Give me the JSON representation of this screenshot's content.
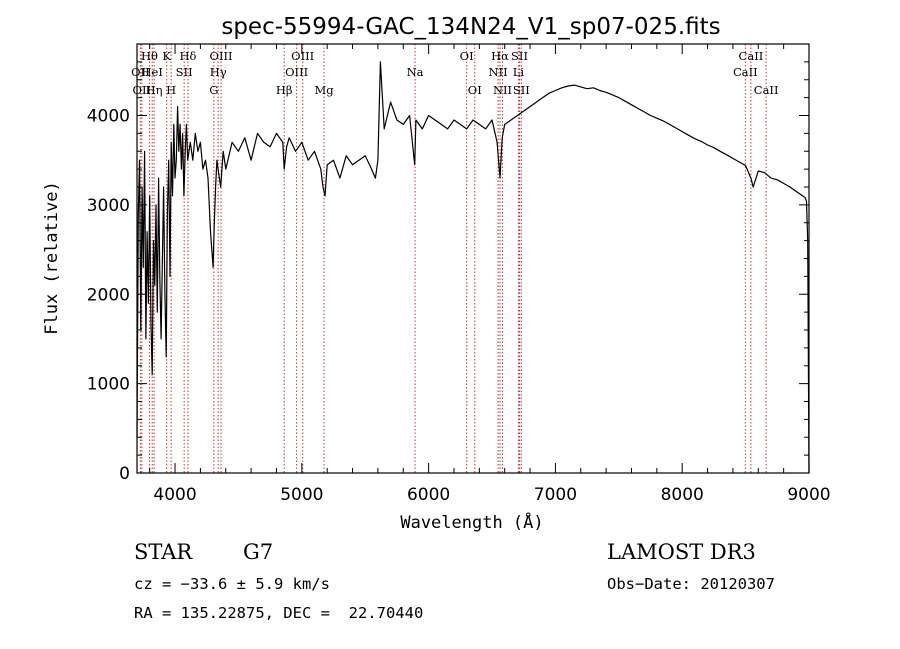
{
  "chart_data": {
    "type": "line",
    "title": "spec-55994-GAC_134N24_V1_sp07-025.fits",
    "xlabel": "Wavelength (Å)",
    "ylabel": "Flux (relative)",
    "xlim": [
      3700,
      9000
    ],
    "ylim": [
      0,
      4800
    ],
    "xticks": [
      4000,
      5000,
      6000,
      7000,
      8000,
      9000
    ],
    "yticks": [
      0,
      1000,
      2000,
      3000,
      4000
    ],
    "series": [
      {
        "name": "flux",
        "x": [
          3700,
          3710,
          3720,
          3730,
          3740,
          3750,
          3760,
          3770,
          3780,
          3790,
          3800,
          3810,
          3820,
          3830,
          3840,
          3850,
          3860,
          3870,
          3880,
          3890,
          3900,
          3910,
          3920,
          3930,
          3940,
          3950,
          3960,
          3970,
          3980,
          3990,
          4000,
          4010,
          4020,
          4030,
          4040,
          4050,
          4060,
          4070,
          4080,
          4090,
          4100,
          4120,
          4140,
          4160,
          4180,
          4200,
          4220,
          4240,
          4260,
          4280,
          4300,
          4310,
          4320,
          4330,
          4340,
          4360,
          4380,
          4400,
          4450,
          4500,
          4550,
          4600,
          4650,
          4700,
          4750,
          4800,
          4850,
          4861,
          4880,
          4900,
          4950,
          5000,
          5050,
          5100,
          5150,
          5167,
          5183,
          5200,
          5250,
          5300,
          5350,
          5400,
          5450,
          5500,
          5550,
          5580,
          5600,
          5620,
          5650,
          5700,
          5750,
          5800,
          5850,
          5890,
          5900,
          5950,
          6000,
          6050,
          6100,
          6150,
          6200,
          6250,
          6300,
          6350,
          6400,
          6450,
          6500,
          6540,
          6563,
          6580,
          6600,
          6650,
          6700,
          6750,
          6800,
          6850,
          6900,
          6950,
          7000,
          7050,
          7100,
          7150,
          7200,
          7250,
          7300,
          7350,
          7400,
          7450,
          7500,
          7550,
          7600,
          7650,
          7700,
          7750,
          7800,
          7850,
          7900,
          7950,
          8000,
          8050,
          8100,
          8150,
          8200,
          8250,
          8300,
          8350,
          8400,
          8450,
          8500,
          8542,
          8560,
          8600,
          8650,
          8700,
          8750,
          8800,
          8850,
          8900,
          8950,
          8970,
          8980,
          8990,
          9000
        ],
        "y": [
          400,
          2900,
          3500,
          1600,
          3200,
          2300,
          3600,
          1500,
          2700,
          1900,
          3100,
          1700,
          1100,
          2600,
          2100,
          3000,
          1800,
          3300,
          2200,
          1500,
          2400,
          3200,
          2000,
          1300,
          2900,
          3500,
          2200,
          3700,
          3100,
          3900,
          3300,
          3500,
          4100,
          3600,
          3900,
          3400,
          3800,
          3100,
          3600,
          3900,
          3500,
          3700,
          3500,
          3800,
          3600,
          3700,
          3400,
          3500,
          3300,
          2700,
          2300,
          2800,
          3200,
          3500,
          3400,
          3200,
          3600,
          3400,
          3700,
          3600,
          3750,
          3500,
          3800,
          3700,
          3650,
          3800,
          3700,
          3400,
          3650,
          3750,
          3600,
          3700,
          3500,
          3600,
          3400,
          3200,
          3100,
          3450,
          3500,
          3300,
          3550,
          3450,
          3500,
          3550,
          3400,
          3300,
          3500,
          4600,
          3850,
          4150,
          3950,
          3900,
          4000,
          3450,
          3950,
          3850,
          4000,
          3950,
          3900,
          3850,
          3950,
          3900,
          3850,
          3950,
          3900,
          3850,
          3950,
          3700,
          3300,
          3750,
          3900,
          3950,
          4000,
          4050,
          4100,
          4150,
          4200,
          4250,
          4280,
          4310,
          4330,
          4340,
          4320,
          4300,
          4310,
          4280,
          4260,
          4230,
          4200,
          4160,
          4120,
          4080,
          4040,
          4000,
          3970,
          3940,
          3900,
          3860,
          3820,
          3780,
          3740,
          3710,
          3670,
          3640,
          3600,
          3560,
          3520,
          3480,
          3440,
          3300,
          3200,
          3380,
          3360,
          3300,
          3280,
          3240,
          3200,
          3150,
          3100,
          3080,
          3040,
          2600,
          0
        ]
      }
    ],
    "lines": [
      {
        "label": "Hθ",
        "x": 3798,
        "row": 1
      },
      {
        "label": "OII",
        "x": 3727,
        "row": 2
      },
      {
        "label": "OII",
        "x": 3738,
        "row": 3
      },
      {
        "label": "HeI",
        "x": 3820,
        "row": 2
      },
      {
        "label": "Hη",
        "x": 3835,
        "row": 3
      },
      {
        "label": "K",
        "x": 3934,
        "row": 1
      },
      {
        "label": "H",
        "x": 3969,
        "row": 3
      },
      {
        "label": "SII",
        "x": 4072,
        "row": 2
      },
      {
        "label": "Hδ",
        "x": 4102,
        "row": 1
      },
      {
        "label": "OIII",
        "x": 4363,
        "row": 1
      },
      {
        "label": "Hγ",
        "x": 4340,
        "row": 2
      },
      {
        "label": "G",
        "x": 4306,
        "row": 3
      },
      {
        "label": "Hβ",
        "x": 4861,
        "row": 3
      },
      {
        "label": "OIII",
        "x": 5007,
        "row": 1
      },
      {
        "label": "OIII",
        "x": 4959,
        "row": 2
      },
      {
        "label": "Mg",
        "x": 5175,
        "row": 3
      },
      {
        "label": "Na",
        "x": 5893,
        "row": 2
      },
      {
        "label": "OI",
        "x": 6300,
        "row": 1
      },
      {
        "label": "OI",
        "x": 6364,
        "row": 3
      },
      {
        "label": "Hα",
        "x": 6563,
        "row": 1
      },
      {
        "label": "NII",
        "x": 6548,
        "row": 2
      },
      {
        "label": "NII",
        "x": 6583,
        "row": 3
      },
      {
        "label": "SII",
        "x": 6717,
        "row": 1
      },
      {
        "label": "Li",
        "x": 6708,
        "row": 2
      },
      {
        "label": "SII",
        "x": 6731,
        "row": 3
      },
      {
        "label": "CaII",
        "x": 8542,
        "row": 1
      },
      {
        "label": "CaII",
        "x": 8498,
        "row": 2
      },
      {
        "label": "CaII",
        "x": 8662,
        "row": 3
      }
    ]
  },
  "info": {
    "class": "STAR",
    "subclass": "G7",
    "survey": "LAMOST DR3",
    "cz": "cz = −33.6 ± 5.9 km/s",
    "obsdate": "Obs−Date: 20120307",
    "radec": "RA = 135.22875, DEC =  22.70440"
  },
  "colors": {
    "line_marker": "#cc3333",
    "spectrum": "#000000"
  }
}
